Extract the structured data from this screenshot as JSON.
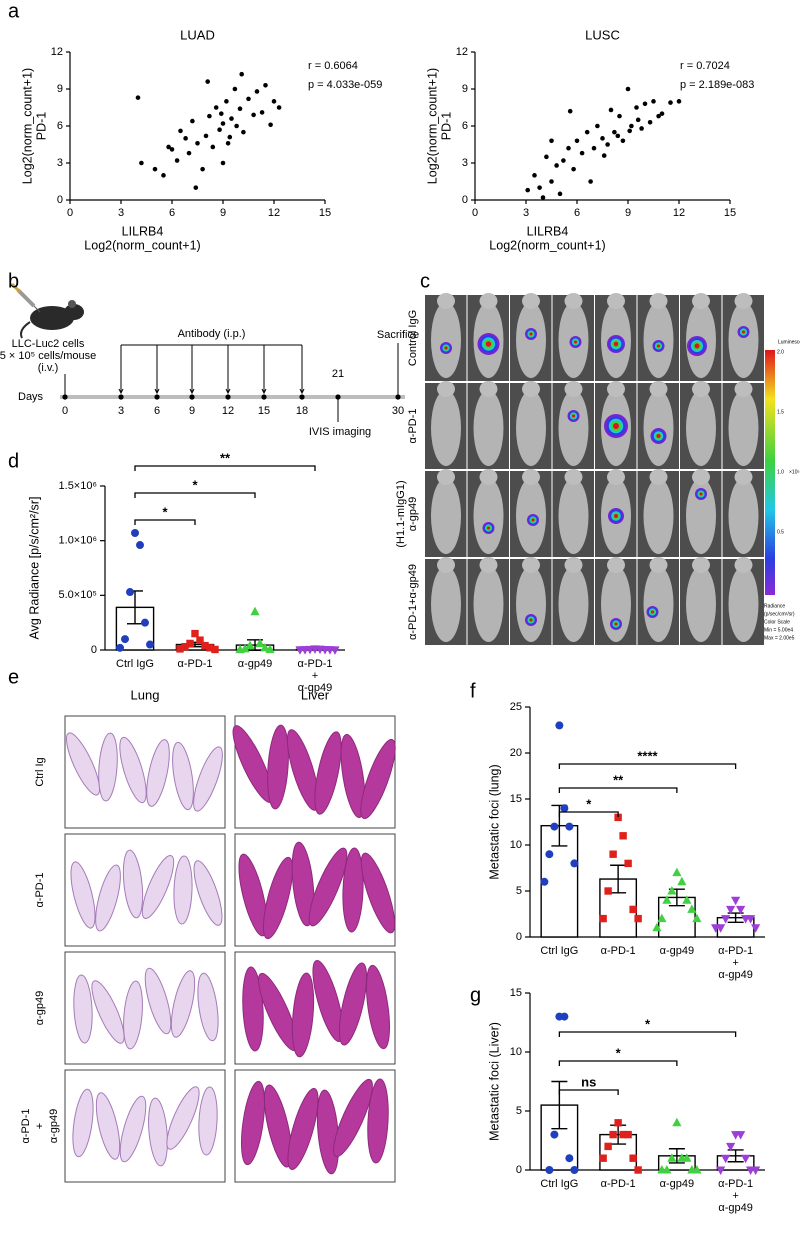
{
  "panel_labels": [
    "a",
    "b",
    "c",
    "d",
    "e",
    "f",
    "g"
  ],
  "chart_data": [
    {
      "type": "scatter",
      "title": "LUAD",
      "annotations": [
        "r = 0.6064",
        "p = 4.033e-059"
      ],
      "xlabel": [
        "LILRB4",
        "Log2(norm_count+1)"
      ],
      "ylabel": [
        "Log2(norm_count+1)",
        "PD-1"
      ],
      "xlim": [
        0,
        15
      ],
      "xticks": [
        0,
        3,
        6,
        9,
        12,
        15
      ],
      "ylim": [
        0,
        12
      ],
      "yticks": [
        0,
        3,
        6,
        9,
        12
      ],
      "color": "#000000",
      "x": [
        4.0,
        4.2,
        5.0,
        5.5,
        6.0,
        6.3,
        6.8,
        7.0,
        7.2,
        7.5,
        7.8,
        8.0,
        8.2,
        8.4,
        8.6,
        8.8,
        9.0,
        9.0,
        9.2,
        9.4,
        9.5,
        9.7,
        10.0,
        10.2,
        10.5,
        10.8,
        11.0,
        11.3,
        11.5,
        12.0,
        7.4,
        8.1,
        9.3,
        10.1,
        6.5,
        8.9,
        11.8,
        12.3,
        5.8,
        9.8
      ],
      "values": [
        8.3,
        3.0,
        2.5,
        2.0,
        4.1,
        3.2,
        5.0,
        3.8,
        6.4,
        4.6,
        2.5,
        5.2,
        6.8,
        4.3,
        7.5,
        5.7,
        3.0,
        6.2,
        8.0,
        5.1,
        6.6,
        9.0,
        7.4,
        5.5,
        8.2,
        6.9,
        8.8,
        7.1,
        9.3,
        8.0,
        1.0,
        9.6,
        4.6,
        10.2,
        5.6,
        7.0,
        6.1,
        7.5,
        4.3,
        6.0
      ]
    },
    {
      "type": "scatter",
      "title": "LUSC",
      "annotations": [
        "r = 0.7024",
        "p = 2.189e-083"
      ],
      "xlabel": [
        "LILRB4",
        "Log2(norm_count+1)"
      ],
      "ylabel": [
        "Log2(norm_count+1)",
        "PD-1"
      ],
      "xlim": [
        0,
        15
      ],
      "xticks": [
        0,
        3,
        6,
        9,
        12,
        15
      ],
      "ylim": [
        0,
        12
      ],
      "yticks": [
        0,
        3,
        6,
        9,
        12
      ],
      "color": "#000000",
      "x": [
        3.1,
        3.5,
        3.8,
        4.0,
        4.2,
        4.5,
        4.8,
        5.0,
        5.2,
        5.5,
        5.8,
        6.0,
        6.3,
        6.6,
        7.0,
        7.2,
        7.5,
        7.8,
        8.0,
        8.2,
        8.5,
        8.7,
        9.0,
        9.2,
        9.5,
        9.8,
        10.0,
        10.3,
        10.5,
        11.0,
        11.5,
        12.0,
        6.8,
        8.4,
        9.6,
        4.5,
        7.6,
        10.8,
        5.6,
        9.1
      ],
      "values": [
        0.8,
        2.0,
        1.0,
        0.2,
        3.5,
        1.5,
        2.8,
        0.5,
        3.2,
        4.2,
        2.5,
        4.8,
        3.8,
        5.5,
        4.2,
        6.0,
        5.0,
        4.5,
        7.3,
        5.5,
        6.8,
        4.8,
        9.0,
        6.0,
        7.5,
        5.8,
        7.8,
        6.3,
        8.0,
        7.0,
        7.9,
        8.0,
        1.5,
        5.2,
        6.5,
        4.8,
        3.6,
        6.8,
        7.2,
        5.6
      ]
    },
    {
      "type": "bar",
      "ylabel": "Avg Radiance [p/s/cm²/sr]",
      "categories": [
        [
          "Ctrl IgG"
        ],
        [
          "α-PD-1"
        ],
        [
          "α-gp49"
        ],
        [
          "α-PD-1",
          "+",
          "α-gp49"
        ]
      ],
      "ylim": [
        0,
        1500000
      ],
      "yticks": [
        0,
        {
          "value": 500000,
          "label": "5.0×10⁵"
        },
        {
          "value": 1000000,
          "label": "1.0×10⁶"
        },
        {
          "value": 1500000,
          "label": "1.5×10⁶"
        }
      ],
      "values": [
        390000,
        50000,
        45000,
        5000
      ],
      "errors": [
        150000,
        20000,
        48000,
        2000
      ],
      "colors": [
        "#1f3fbf",
        "#e0201b",
        "#3fd13f",
        "#9b3fd6"
      ],
      "markers": [
        "circle",
        "square",
        "triangle",
        "triangle-down"
      ],
      "points": [
        [
          1070000,
          960000,
          530000,
          250000,
          100000,
          50000,
          20000
        ],
        [
          150000,
          90000,
          60000,
          40000,
          30000,
          20000,
          10000,
          5000
        ],
        [
          350000,
          60000,
          40000,
          20000,
          10000,
          5000,
          3000
        ],
        [
          10000,
          8000,
          6000,
          5000,
          4000,
          3000,
          2000,
          1000
        ]
      ],
      "comparisons": [
        {
          "from": 0,
          "to": 1,
          "label": "*"
        },
        {
          "from": 0,
          "to": 2,
          "label": "*"
        },
        {
          "from": 0,
          "to": 3,
          "label": "**"
        }
      ]
    },
    {
      "type": "bar",
      "ylabel": "Metastatic foci (lung)",
      "categories": [
        [
          "Ctrl IgG"
        ],
        [
          "α-PD-1"
        ],
        [
          "α-gp49"
        ],
        [
          "α-PD-1",
          "+",
          "α-gp49"
        ]
      ],
      "ylim": [
        0,
        25
      ],
      "yticks": [
        0,
        5,
        10,
        15,
        20,
        25
      ],
      "values": [
        12.1,
        6.3,
        4.3,
        2.1
      ],
      "errors": [
        2.2,
        1.5,
        0.9,
        0.5
      ],
      "colors": [
        "#1f3fbf",
        "#e0201b",
        "#3fd13f",
        "#9b3fd6"
      ],
      "markers": [
        "circle",
        "square",
        "triangle",
        "triangle-down"
      ],
      "points": [
        [
          23,
          14,
          12,
          12,
          9,
          8,
          6
        ],
        [
          13,
          11,
          9,
          8,
          5,
          3,
          2,
          2
        ],
        [
          7,
          6,
          5,
          4,
          4,
          3,
          2,
          2,
          1
        ],
        [
          4,
          3,
          3,
          2,
          2,
          2,
          1,
          1,
          1
        ]
      ],
      "comparisons": [
        {
          "from": 0,
          "to": 1,
          "label": "*"
        },
        {
          "from": 0,
          "to": 2,
          "label": "**"
        },
        {
          "from": 0,
          "to": 3,
          "label": "****"
        }
      ]
    },
    {
      "type": "bar",
      "ylabel": "Metastatic foci (Liver)",
      "categories": [
        [
          "Ctrl IgG"
        ],
        [
          "α-PD-1"
        ],
        [
          "α-gp49"
        ],
        [
          "α-PD-1",
          "+",
          "α-gp49"
        ]
      ],
      "ylim": [
        0,
        15
      ],
      "yticks": [
        0,
        5,
        10,
        15
      ],
      "values": [
        5.5,
        3.0,
        1.2,
        1.2
      ],
      "errors": [
        2.0,
        0.8,
        0.6,
        0.5
      ],
      "colors": [
        "#1f3fbf",
        "#e0201b",
        "#3fd13f",
        "#9b3fd6"
      ],
      "markers": [
        "circle",
        "square",
        "triangle",
        "triangle-down"
      ],
      "points": [
        [
          13,
          13,
          3,
          1,
          0,
          0
        ],
        [
          4,
          3,
          3,
          3,
          2,
          1,
          1,
          0
        ],
        [
          4,
          1,
          1,
          1,
          0,
          0,
          0,
          0
        ],
        [
          3,
          3,
          2,
          1,
          1,
          0,
          0,
          0
        ]
      ],
      "comparisons": [
        {
          "from": 0,
          "to": 1,
          "label": "ns"
        },
        {
          "from": 0,
          "to": 2,
          "label": "*"
        },
        {
          "from": 0,
          "to": 3,
          "label": "*"
        }
      ]
    }
  ],
  "timeline": {
    "cells": [
      "LLC-Luc2 cells",
      "5 × 10⁵ cells/mouse",
      "(i.v.)"
    ],
    "days_label": "Days",
    "days": [
      "0",
      "3",
      "6",
      "9",
      "12",
      "15",
      "18",
      "21",
      "30"
    ],
    "antibody": "Antibody (i.p.)",
    "imaging": "IVIS imaging",
    "sacrifice": "Sacrifice"
  },
  "imaging": {
    "rows": [
      [
        "Control IgG"
      ],
      [
        "α-PD-1"
      ],
      [
        "(H1.1-mIgG1)",
        "α-gp49"
      ],
      [
        "α-PD-1+α-gp49"
      ]
    ],
    "colorbar": {
      "title": "Luminescence",
      "ticks": [
        "2.0",
        "1.5",
        "1.0",
        "0.5"
      ],
      "unit": "×10⁵",
      "footer": [
        "Radiance",
        "(p/sec/cm²/sr)",
        "Color Scale",
        "Min = 5.00e4",
        "Max = 2.00e5"
      ]
    }
  },
  "histology": {
    "columns": [
      "Lung",
      "Liver"
    ],
    "rows": [
      [
        "Ctrl Ig"
      ],
      [
        "α-PD-1"
      ],
      [
        "α-gp49"
      ],
      [
        "α-PD-1",
        "+",
        "α-gp49"
      ]
    ]
  }
}
